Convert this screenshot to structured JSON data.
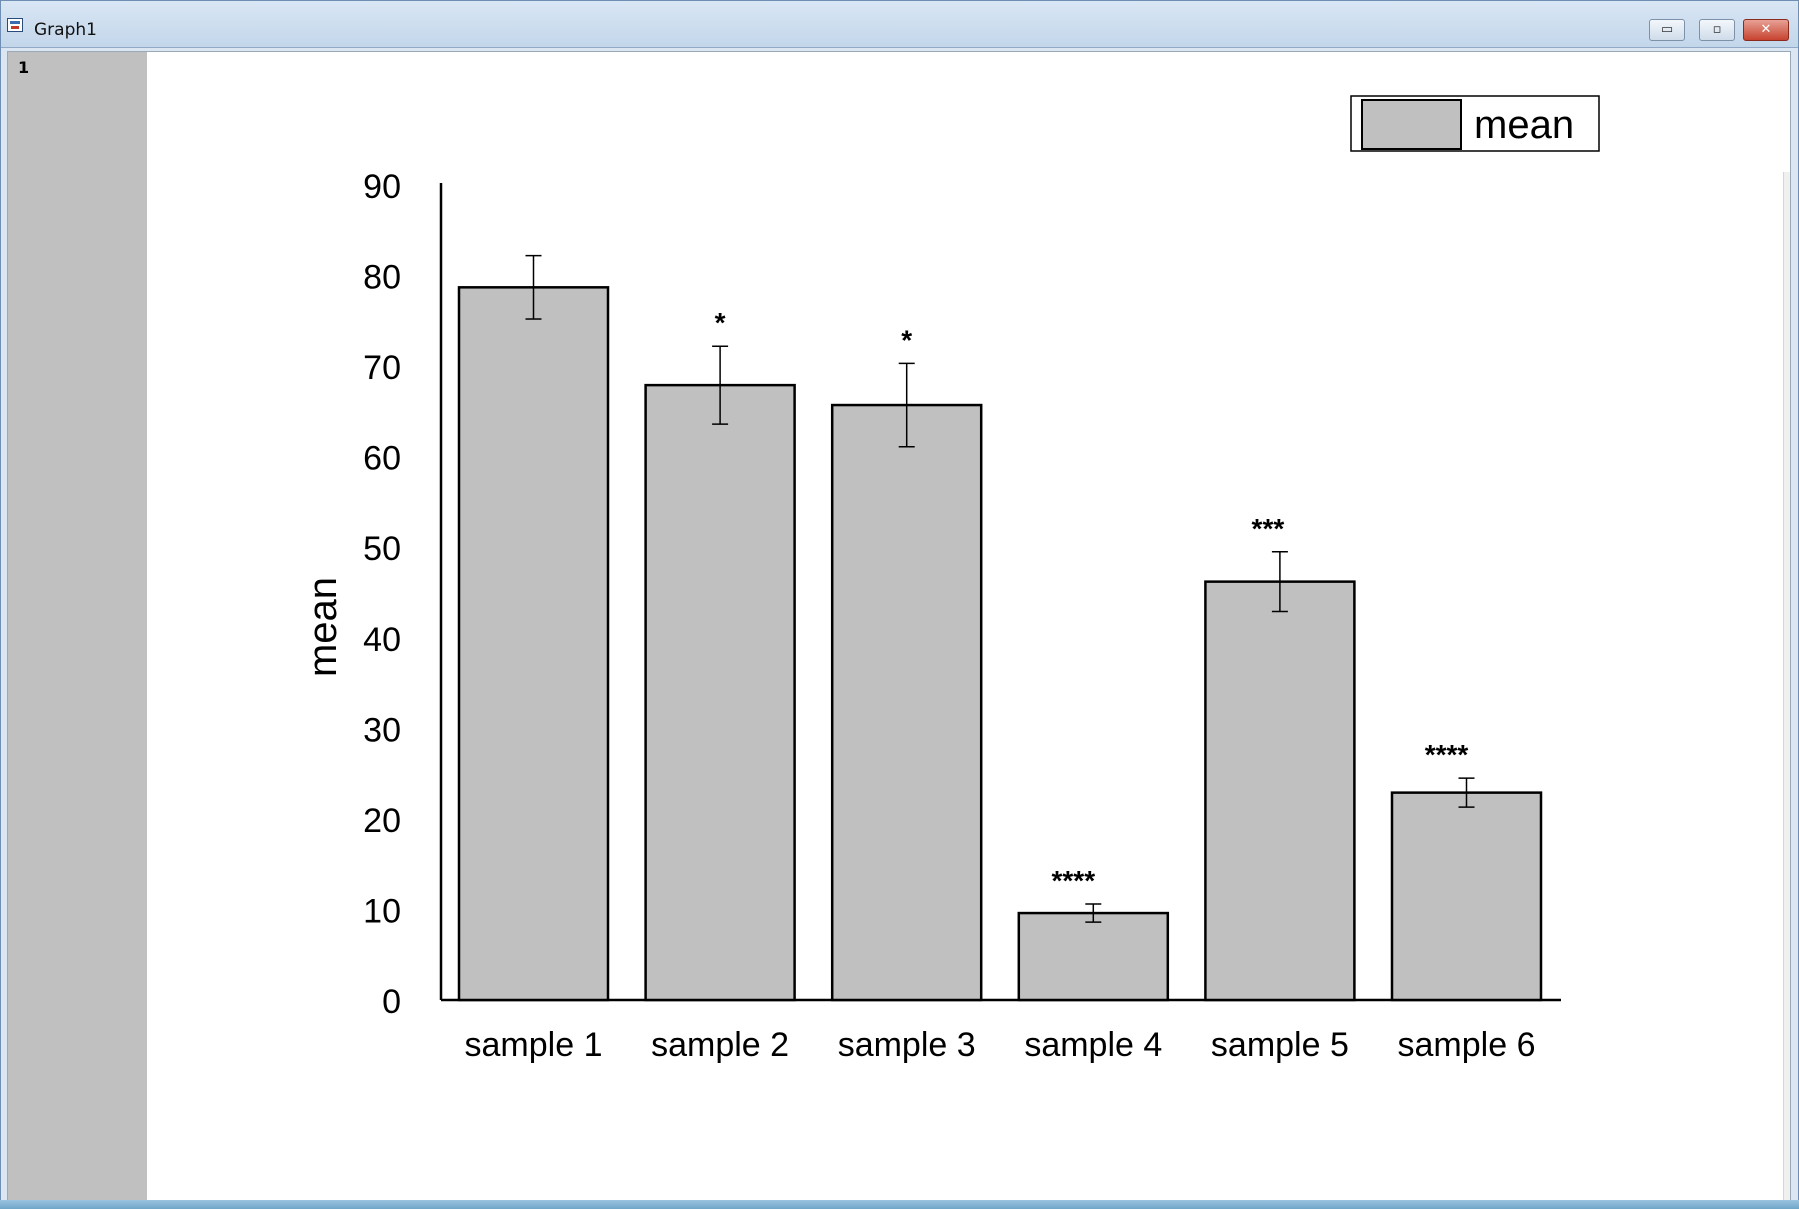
{
  "window": {
    "title": "Graph1",
    "page_number": "1",
    "buttons": {
      "minimize": "▭",
      "maximize": "▫",
      "close": "✕"
    }
  },
  "colors": {
    "bar_fill": "#c0c0c0",
    "bar_stroke": "#000000",
    "gutter": "#c0c0c0",
    "axis": "#000000"
  },
  "chart_data": {
    "type": "bar",
    "title": "",
    "xlabel": "",
    "ylabel": "mean",
    "ylim": [
      0,
      90
    ],
    "yticks": [
      0,
      10,
      20,
      30,
      40,
      50,
      60,
      70,
      80,
      90
    ],
    "grid": false,
    "legend": {
      "placement": "top-right",
      "entries": [
        "mean"
      ]
    },
    "categories": [
      "sample 1",
      "sample 2",
      "sample 3",
      "sample 4",
      "sample 5",
      "sample 6"
    ],
    "series": [
      {
        "name": "mean",
        "values": [
          78.7,
          67.9,
          65.7,
          9.6,
          46.2,
          22.9
        ],
        "errors": [
          3.5,
          4.3,
          4.6,
          1.0,
          3.3,
          1.6
        ],
        "annotations": [
          "",
          "*",
          "*",
          "****",
          "***",
          "****"
        ]
      }
    ]
  }
}
